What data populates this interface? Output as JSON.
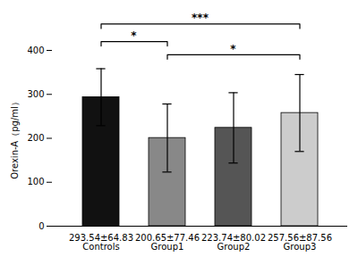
{
  "chart_data": {
    "type": "bar",
    "categories": [
      "Controls",
      "Group1",
      "Group2",
      "Group3"
    ],
    "sublabels": [
      "293.54±64.83",
      "200.65±77.46",
      "223.74±80.02",
      "257.56±87.56"
    ],
    "values": [
      293.54,
      200.65,
      223.74,
      257.56
    ],
    "errors": [
      64.83,
      77.46,
      80.02,
      87.56
    ],
    "colors": [
      "#111111",
      "#888888",
      "#555555",
      "#cccccc"
    ],
    "ylabel": "Orexin-A（pg/ml）",
    "ylim": [
      0,
      400
    ],
    "yticks": [
      0,
      100,
      200,
      300,
      400
    ],
    "grid": false,
    "annotations": [
      {
        "x1": "Controls",
        "x2": "Group1",
        "y": 420,
        "label": "*"
      },
      {
        "x1": "Controls",
        "x2": "Group3",
        "y": 460,
        "label": "***"
      },
      {
        "x1": "Group1",
        "x2": "Group3",
        "y": 390,
        "label": "*"
      }
    ]
  }
}
